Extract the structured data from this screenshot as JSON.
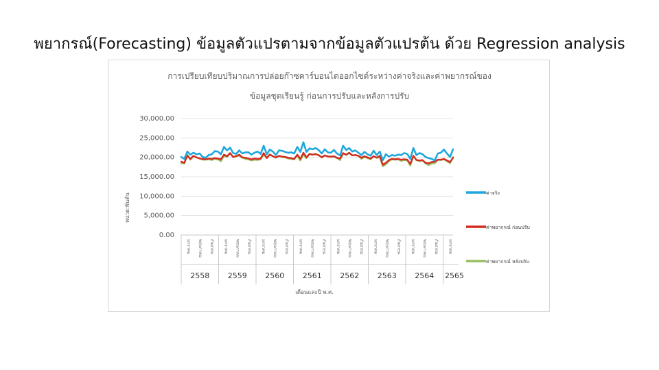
{
  "slide": {
    "title": "พยากรณ์(Forecasting) ข้อมูลตัวแปรตามจากข้อมูลตัวแปรต้น ด้วย Regression analysis"
  },
  "chart_data": {
    "type": "line",
    "title_line1": "การเปรียบเทียบปริมาณการปล่อยก๊าซคาร์บอนไดออกไซด์ระหว่างค่าจริงและค่าพยากรณ์ของ",
    "title_line2": "ข้อมูลชุดเรียนรู้ ก่อนการปรับและหลังการปรับ",
    "ylabel": "หน่วย:พันตัน",
    "xlabel": "เดือนและปี พ.ศ.",
    "ylim": [
      0,
      30000
    ],
    "y_ticks": [
      "30,000.00",
      "25,000.00",
      "20,000.00",
      "15,000.00",
      "10,000.00",
      "5,000.00",
      "0.00"
    ],
    "grid": true,
    "legend_position": "right",
    "years": [
      "2558",
      "2559",
      "2560",
      "2561",
      "2562",
      "2563",
      "2564",
      "2565"
    ],
    "month_tick_labels": [
      "มกราคม",
      "พฤษภาคม",
      "กันยายน"
    ],
    "series": [
      {
        "name": "ค่าจริง",
        "color": "#1fa7dc",
        "values": [
          20100,
          19600,
          21500,
          20700,
          21200,
          20800,
          21000,
          20100,
          19900,
          20600,
          20800,
          21600,
          21500,
          20800,
          22700,
          21800,
          22500,
          21100,
          20900,
          21800,
          21000,
          21300,
          21300,
          20700,
          21200,
          21500,
          20900,
          23000,
          20800,
          22000,
          21500,
          20600,
          21800,
          21700,
          21400,
          21200,
          21300,
          21000,
          22700,
          21400,
          23900,
          21400,
          22300,
          22100,
          22400,
          21900,
          21000,
          22100,
          21300,
          21200,
          21900,
          21000,
          20500,
          23000,
          21900,
          22400,
          21500,
          21800,
          21200,
          20600,
          21400,
          20800,
          20400,
          21700,
          20600,
          21500,
          19300,
          20800,
          20200,
          20600,
          20400,
          20700,
          20600,
          21100,
          20900,
          19600,
          22400,
          20600,
          21100,
          20800,
          20100,
          19800,
          19600,
          19200,
          21000,
          21200,
          22000,
          21000,
          20100,
          22100
        ]
      },
      {
        "name": "ค่าพยากรณ์ ก่อนปรับ",
        "color": "#d42b1f",
        "values": [
          18900,
          18600,
          20400,
          19600,
          20400,
          20000,
          19700,
          19600,
          19500,
          19700,
          19600,
          19800,
          19700,
          19500,
          20700,
          20300,
          21100,
          20100,
          20300,
          20700,
          20000,
          19900,
          19700,
          19500,
          19700,
          19600,
          19700,
          21100,
          19800,
          20700,
          20300,
          20000,
          20400,
          20200,
          20100,
          19900,
          19800,
          19600,
          20700,
          19600,
          21200,
          20000,
          20900,
          20700,
          20800,
          20600,
          20000,
          20500,
          20200,
          20200,
          20300,
          19900,
          19700,
          21100,
          20700,
          21200,
          20500,
          20600,
          20400,
          19900,
          20300,
          20000,
          19700,
          20300,
          19900,
          20400,
          18100,
          18600,
          19300,
          19600,
          19500,
          19600,
          19400,
          19500,
          19400,
          18300,
          20400,
          19300,
          19200,
          19300,
          18600,
          18500,
          18800,
          18900,
          19400,
          19400,
          19600,
          19200,
          18800,
          19900
        ]
      },
      {
        "name": "ค่าพยากรณ์ หลังปรับ",
        "color": "#97bd5f",
        "values": [
          18500,
          18400,
          20700,
          19400,
          20300,
          20000,
          19800,
          19400,
          19400,
          19500,
          19300,
          19600,
          19500,
          19000,
          20400,
          20100,
          21000,
          20100,
          20400,
          20400,
          19900,
          19600,
          19500,
          19200,
          19400,
          19300,
          19500,
          20700,
          19900,
          20800,
          20300,
          19900,
          20300,
          20100,
          20000,
          19700,
          19600,
          19500,
          20500,
          19200,
          20700,
          19800,
          20800,
          20700,
          20900,
          20500,
          20100,
          20500,
          20300,
          20100,
          20200,
          19800,
          19300,
          21000,
          20600,
          21100,
          20500,
          20600,
          20400,
          19600,
          20100,
          19800,
          19500,
          20300,
          19900,
          20000,
          17700,
          18200,
          19000,
          19500,
          19400,
          19500,
          19100,
          19300,
          19200,
          17900,
          20400,
          19300,
          19000,
          19200,
          18400,
          18000,
          18400,
          18500,
          19300,
          19300,
          19500,
          19000,
          18500,
          20100
        ]
      }
    ]
  }
}
